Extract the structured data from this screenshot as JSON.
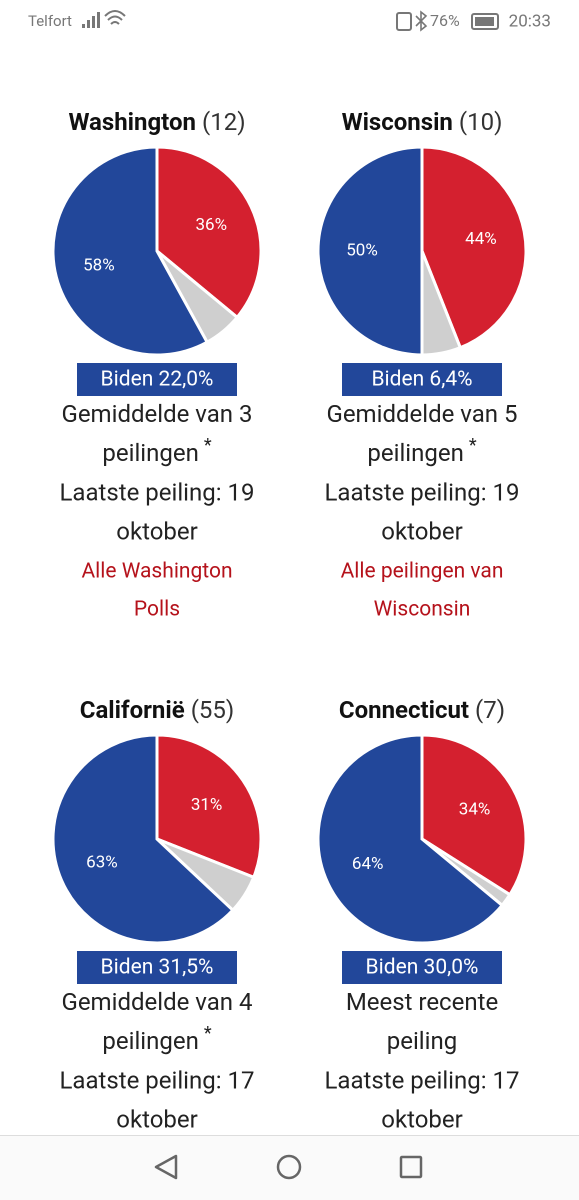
{
  "status_bar": {
    "carrier": "Telfort",
    "battery": "76%",
    "time": "20:33"
  },
  "states": [
    {
      "name": "Washington",
      "electors": "(12)",
      "pie": {
        "type": "pie",
        "values": [
          36,
          6,
          58
        ],
        "value_labels": [
          "36%",
          null,
          "58%"
        ],
        "colors": [
          "#d4202f",
          "#cfcfcf",
          "#22479a"
        ]
      },
      "lead": "Biden 22,0%",
      "lines": [
        "Gemiddelde van 3",
        "peilingen"
      ],
      "asterisk": "*",
      "updated": [
        "Laatste peiling: 19",
        "oktober"
      ],
      "link": [
        "Alle Washington",
        "Polls"
      ]
    },
    {
      "name": "Wisconsin",
      "electors": "(10)",
      "pie": {
        "type": "pie",
        "values": [
          44,
          6,
          50
        ],
        "value_labels": [
          "44%",
          null,
          "50%"
        ],
        "colors": [
          "#d4202f",
          "#cfcfcf",
          "#22479a"
        ]
      },
      "lead": "Biden 6,4%",
      "lines": [
        "Gemiddelde van 5",
        "peilingen"
      ],
      "asterisk": "*",
      "updated": [
        "Laatste peiling: 19",
        "oktober"
      ],
      "link": [
        "Alle peilingen van",
        "Wisconsin"
      ]
    },
    {
      "name": "Californië",
      "electors": "(55)",
      "pie": {
        "type": "pie",
        "values": [
          31,
          6,
          63
        ],
        "value_labels": [
          "31%",
          null,
          "63%"
        ],
        "colors": [
          "#d4202f",
          "#cfcfcf",
          "#22479a"
        ]
      },
      "lead": "Biden 31,5%",
      "lines": [
        "Gemiddelde van 4",
        "peilingen"
      ],
      "asterisk": "*",
      "updated": [
        "Laatste peiling: 17",
        "oktober"
      ]
    },
    {
      "name": "Connecticut",
      "electors": "(7)",
      "pie": {
        "type": "pie",
        "values": [
          34,
          2,
          64
        ],
        "value_labels": [
          "34%",
          null,
          "64%"
        ],
        "colors": [
          "#d4202f",
          "#cfcfcf",
          "#22479a"
        ]
      },
      "lead": "Biden 30,0%",
      "lines": [
        "Meest recente",
        "peiling"
      ],
      "updated": [
        "Laatste peiling: 17",
        "oktober"
      ]
    }
  ]
}
